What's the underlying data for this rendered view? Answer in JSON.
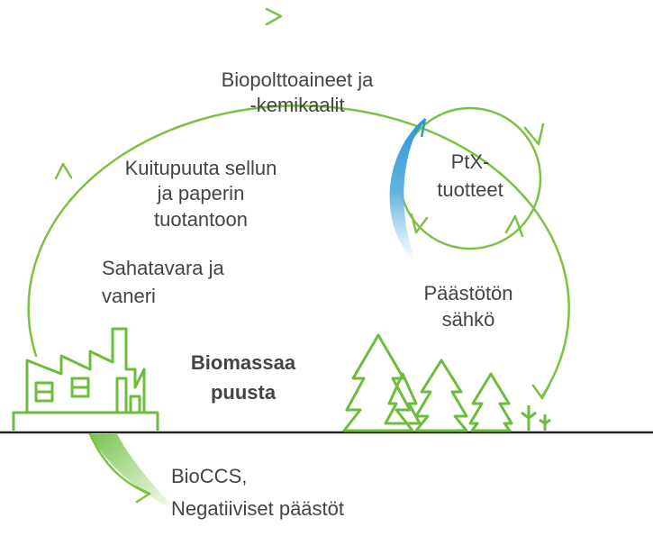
{
  "labels": {
    "biofuels": [
      "Biopolttoaineet ja",
      "-kemikaalit"
    ],
    "pulpwood": [
      "Kuitupuuta sellun",
      "ja paperin",
      "tuotantoon"
    ],
    "sawn": [
      "Sahatavara ja",
      "vaneri"
    ],
    "ptx": [
      "PtX-",
      "tuotteet"
    ],
    "electricity": [
      "Päästötön",
      "sähkö"
    ],
    "biomass": [
      "Biomassaa",
      "puusta"
    ],
    "bioccs": [
      "BioCCS,",
      "Negatiiviset päästöt"
    ]
  }
}
